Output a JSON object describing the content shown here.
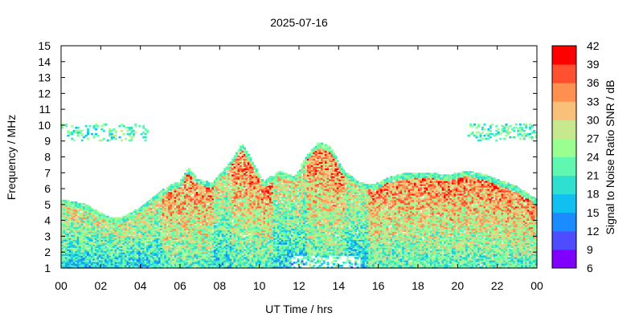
{
  "chart_data": {
    "type": "heatmap",
    "title": "2025-07-16",
    "xlabel": "UT Time / hrs",
    "ylabel": "Frequency / MHz",
    "colorbar_label": "Signal to Noise Ratio SNR / dB",
    "x_ticks": [
      "00",
      "02",
      "04",
      "06",
      "08",
      "10",
      "12",
      "14",
      "16",
      "18",
      "20",
      "22",
      "00"
    ],
    "y_ticks": [
      1,
      2,
      3,
      4,
      5,
      6,
      7,
      8,
      9,
      10,
      11,
      12,
      13,
      14,
      15
    ],
    "xlim_hours": [
      0,
      24
    ],
    "ylim_mhz": [
      1,
      15
    ],
    "colorbar_ticks": [
      6,
      9,
      12,
      15,
      18,
      21,
      24,
      27,
      30,
      33,
      36,
      39,
      42
    ],
    "colorbar_range_db": [
      6,
      42
    ],
    "colorbar_colors": [
      "#8000ff",
      "#4d4dff",
      "#1a8cff",
      "#0fc0f0",
      "#2fe0d0",
      "#60f8b0",
      "#98ff90",
      "#c8e890",
      "#f8c078",
      "#ff9050",
      "#ff5030",
      "#ff0000"
    ],
    "grid": false,
    "upper_envelope_mhz": [
      {
        "x": 0,
        "y": 5.3
      },
      {
        "x": 1.2,
        "y": 5.0
      },
      {
        "x": 2.4,
        "y": 4.2
      },
      {
        "x": 3.0,
        "y": 4.1
      },
      {
        "x": 4.0,
        "y": 4.8
      },
      {
        "x": 4.8,
        "y": 5.6
      },
      {
        "x": 5.5,
        "y": 6.2
      },
      {
        "x": 6.0,
        "y": 6.4
      },
      {
        "x": 6.4,
        "y": 7.3
      },
      {
        "x": 6.9,
        "y": 6.6
      },
      {
        "x": 7.6,
        "y": 6.3
      },
      {
        "x": 8.5,
        "y": 7.6
      },
      {
        "x": 9.1,
        "y": 8.8
      },
      {
        "x": 9.6,
        "y": 7.8
      },
      {
        "x": 10.2,
        "y": 6.4
      },
      {
        "x": 11.0,
        "y": 7.1
      },
      {
        "x": 11.8,
        "y": 6.7
      },
      {
        "x": 12.4,
        "y": 8.1
      },
      {
        "x": 13.0,
        "y": 8.9
      },
      {
        "x": 13.6,
        "y": 8.6
      },
      {
        "x": 14.2,
        "y": 7.2
      },
      {
        "x": 15.0,
        "y": 6.4
      },
      {
        "x": 15.8,
        "y": 6.2
      },
      {
        "x": 16.5,
        "y": 6.7
      },
      {
        "x": 17.2,
        "y": 6.9
      },
      {
        "x": 18.5,
        "y": 7.0
      },
      {
        "x": 19.5,
        "y": 6.8
      },
      {
        "x": 20.5,
        "y": 7.1
      },
      {
        "x": 21.5,
        "y": 6.8
      },
      {
        "x": 23.0,
        "y": 6.1
      },
      {
        "x": 24.0,
        "y": 5.3
      }
    ],
    "sporadic_band_mhz": [
      9.0,
      10.0
    ]
  }
}
